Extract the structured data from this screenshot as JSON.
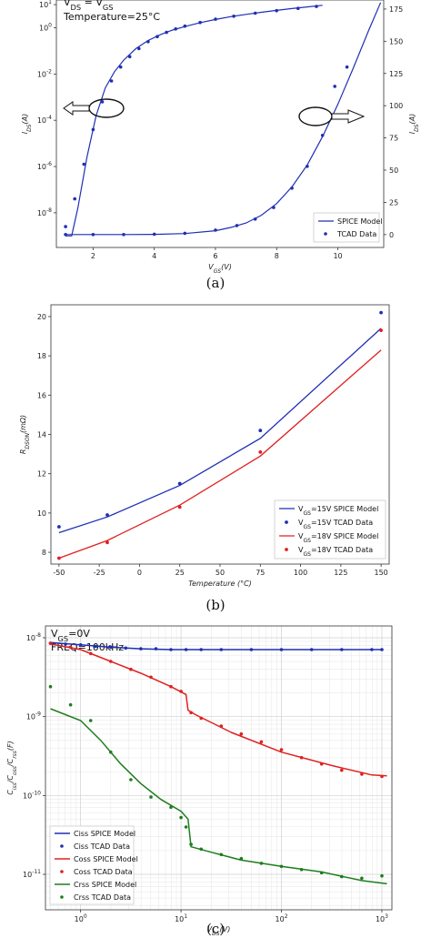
{
  "chart_data": [
    {
      "id": "a",
      "type": "line",
      "caption": "(a)",
      "annotations": [
        "V_DS = V_GS",
        "Temperature=25°C"
      ],
      "xlabel": "V_GS(V)",
      "ylabel": "I_DS(A)",
      "ylabel_right": "I_DS(A)",
      "xlim": [
        0.8,
        11.5
      ],
      "ylim_left_log": [
        -9.5,
        1.2
      ],
      "ylim_right": [
        -10,
        182
      ],
      "x_ticks": [
        2,
        4,
        6,
        8,
        10
      ],
      "y_ticks_left": [
        "10^-8",
        "10^-6",
        "10^-4",
        "10^-2",
        "10^0",
        "10^1"
      ],
      "y_ticks_right": [
        0,
        25,
        50,
        75,
        100,
        125,
        150,
        175
      ],
      "legend_position": "bottom-right",
      "series": [
        {
          "name": "SPICE Model",
          "axis": "left-log",
          "style": "line",
          "color": "#1f2fb4",
          "x": [
            1.1,
            1.3,
            1.5,
            1.8,
            2.1,
            2.4,
            2.7,
            3.0,
            3.4,
            3.8,
            4.2,
            4.6,
            5.0,
            5.5,
            6.0,
            6.5,
            7.0,
            7.5,
            8.0,
            8.5,
            9.0,
            9.5
          ],
          "y": [
            -9,
            -9,
            -7.8,
            -5.6,
            -3.8,
            -2.6,
            -1.9,
            -1.4,
            -0.9,
            -0.55,
            -0.3,
            -0.1,
            0.05,
            0.22,
            0.36,
            0.48,
            0.58,
            0.67,
            0.75,
            0.83,
            0.9,
            0.97
          ]
        },
        {
          "name": "TCAD Data",
          "axis": "left-log",
          "style": "points",
          "color": "#1f2fb4",
          "x": [
            1.1,
            1.4,
            1.7,
            2.0,
            2.3,
            2.6,
            2.9,
            3.2,
            3.5,
            3.8,
            4.1,
            4.4,
            4.7,
            5.0,
            5.5,
            6.0,
            6.6,
            7.3,
            8.0,
            8.7,
            9.3
          ],
          "y": [
            -8.6,
            -7.4,
            -5.9,
            -4.4,
            -3.2,
            -2.3,
            -1.7,
            -1.25,
            -0.9,
            -0.6,
            -0.38,
            -0.2,
            -0.05,
            0.07,
            0.23,
            0.37,
            0.5,
            0.63,
            0.74,
            0.84,
            0.92
          ]
        },
        {
          "name": "SPICE Model",
          "axis": "right-linear",
          "style": "line",
          "color": "#1f2fb4",
          "x": [
            1.1,
            3.0,
            4.0,
            5.0,
            6.0,
            6.5,
            7.0,
            7.5,
            8.0,
            8.5,
            9.0,
            9.5,
            10.0,
            10.5,
            11.0,
            11.4
          ],
          "y": [
            0,
            0,
            0.2,
            0.8,
            3,
            5.5,
            9,
            15,
            24,
            37,
            54,
            76,
            101,
            129,
            158,
            180
          ]
        },
        {
          "name": "TCAD Data",
          "axis": "right-linear",
          "style": "points",
          "color": "#1f2fb4",
          "x": [
            1.1,
            2.0,
            3.0,
            4.0,
            5.0,
            6.0,
            6.7,
            7.3,
            7.9,
            8.5,
            9.0,
            9.5,
            9.9,
            10.3
          ],
          "y": [
            0,
            0,
            0,
            0.3,
            1,
            3.5,
            7,
            12,
            21,
            36,
            53,
            77,
            115,
            130
          ]
        }
      ]
    },
    {
      "id": "b",
      "type": "line",
      "caption": "(b)",
      "xlabel": "Temperature (°C)",
      "ylabel": "R_DSON(mΩ)",
      "xlim": [
        -55,
        155
      ],
      "ylim": [
        7.4,
        20.6
      ],
      "x_ticks": [
        -50,
        -25,
        0,
        25,
        50,
        75,
        100,
        125,
        150
      ],
      "y_ticks": [
        8,
        10,
        12,
        14,
        16,
        18,
        20
      ],
      "legend_position": "bottom-right",
      "series": [
        {
          "name": "V_GS=15V SPICE Model",
          "style": "line",
          "color": "#1f2fb4",
          "x": [
            -50,
            -20,
            25,
            75,
            150
          ],
          "y": [
            9.0,
            9.8,
            11.4,
            13.8,
            19.4
          ]
        },
        {
          "name": "V_GS=15V TCAD Data",
          "style": "points",
          "color": "#1f2fb4",
          "x": [
            -50,
            -20,
            25,
            75,
            150
          ],
          "y": [
            9.3,
            9.9,
            11.5,
            14.2,
            20.2
          ]
        },
        {
          "name": "V_GS=18V SPICE Model",
          "style": "line",
          "color": "#e02020",
          "x": [
            -50,
            -20,
            25,
            75,
            150
          ],
          "y": [
            7.7,
            8.6,
            10.4,
            12.9,
            18.3
          ]
        },
        {
          "name": "V_GS=18V TCAD Data",
          "style": "points",
          "color": "#e02020",
          "x": [
            -50,
            -20,
            25,
            75,
            150
          ],
          "y": [
            7.7,
            8.5,
            10.3,
            13.1,
            19.3
          ]
        }
      ]
    },
    {
      "id": "c",
      "type": "line",
      "caption": "(c)",
      "annotations": [
        "V_GS=0V",
        "FREQ=100kHz"
      ],
      "xlabel": "V_DS(V)",
      "ylabel": "C_iss/C_oss/C_rss(F)",
      "xlim_log": [
        -0.35,
        3.1
      ],
      "ylim_log": [
        -11.45,
        -7.85
      ],
      "x_ticks": [
        "10^0",
        "10^1",
        "10^2",
        "10^3"
      ],
      "y_ticks": [
        "10^-11",
        "10^-10",
        "10^-9",
        "10^-8"
      ],
      "legend_position": "bottom-left",
      "series": [
        {
          "name": "Ciss SPICE Model",
          "style": "line",
          "color": "#1f2fb4",
          "x": [
            -0.3,
            0,
            0.3,
            0.6,
            0.9,
            1.1,
            1.5,
            2.0,
            2.5,
            3.0
          ],
          "y": [
            -8.06,
            -8.09,
            -8.12,
            -8.14,
            -8.15,
            -8.15,
            -8.15,
            -8.15,
            -8.15,
            -8.15
          ]
        },
        {
          "name": "Ciss TCAD Data",
          "style": "points",
          "color": "#1f2fb4",
          "x": [
            -0.3,
            -0.15,
            0,
            0.15,
            0.3,
            0.45,
            0.6,
            0.75,
            0.9,
            1.05,
            1.2,
            1.4,
            1.7,
            2.0,
            2.3,
            2.6,
            2.9,
            3.0
          ],
          "y": [
            -8.07,
            -8.08,
            -8.09,
            -8.11,
            -8.12,
            -8.13,
            -8.14,
            -8.14,
            -8.15,
            -8.15,
            -8.15,
            -8.15,
            -8.15,
            -8.15,
            -8.15,
            -8.15,
            -8.15,
            -8.15
          ]
        },
        {
          "name": "Coss SPICE Model",
          "style": "line",
          "color": "#e02020",
          "x": [
            -0.3,
            0,
            0.3,
            0.6,
            0.9,
            1.05,
            1.07,
            1.15,
            1.5,
            2.0,
            2.5,
            2.9,
            3.05
          ],
          "y": [
            -8.08,
            -8.15,
            -8.3,
            -8.45,
            -8.62,
            -8.72,
            -8.92,
            -8.98,
            -9.2,
            -9.45,
            -9.62,
            -9.74,
            -9.75
          ]
        },
        {
          "name": "Coss TCAD Data",
          "style": "points",
          "color": "#e02020",
          "x": [
            -0.3,
            -0.1,
            0.1,
            0.3,
            0.5,
            0.7,
            0.9,
            1.0,
            1.1,
            1.2,
            1.4,
            1.6,
            1.8,
            2.0,
            2.2,
            2.4,
            2.6,
            2.8,
            3.0
          ],
          "y": [
            -8.07,
            -8.12,
            -8.2,
            -8.3,
            -8.4,
            -8.5,
            -8.62,
            -8.68,
            -8.95,
            -9.02,
            -9.12,
            -9.22,
            -9.32,
            -9.42,
            -9.52,
            -9.6,
            -9.68,
            -9.73,
            -9.76
          ]
        },
        {
          "name": "Crss SPICE Model",
          "style": "line",
          "color": "#1e7d1e",
          "x": [
            -0.3,
            0,
            0.2,
            0.4,
            0.6,
            0.8,
            1.0,
            1.07,
            1.1,
            1.3,
            1.6,
            2.0,
            2.4,
            2.8,
            3.05
          ],
          "y": [
            -8.9,
            -9.05,
            -9.3,
            -9.6,
            -9.85,
            -10.05,
            -10.2,
            -10.3,
            -10.65,
            -10.72,
            -10.82,
            -10.9,
            -10.97,
            -11.08,
            -11.12
          ]
        },
        {
          "name": "Crss TCAD Data",
          "style": "points",
          "color": "#1e7d1e",
          "x": [
            -0.3,
            -0.1,
            0.1,
            0.3,
            0.5,
            0.7,
            0.9,
            1.0,
            1.05,
            1.1,
            1.2,
            1.4,
            1.6,
            1.8,
            2.0,
            2.2,
            2.4,
            2.6,
            2.8,
            3.0
          ],
          "y": [
            -8.62,
            -8.85,
            -9.05,
            -9.45,
            -9.8,
            -10.02,
            -10.15,
            -10.28,
            -10.4,
            -10.62,
            -10.68,
            -10.75,
            -10.8,
            -10.86,
            -10.9,
            -10.94,
            -10.98,
            -11.03,
            -11.05,
            -11.02
          ]
        }
      ]
    }
  ]
}
